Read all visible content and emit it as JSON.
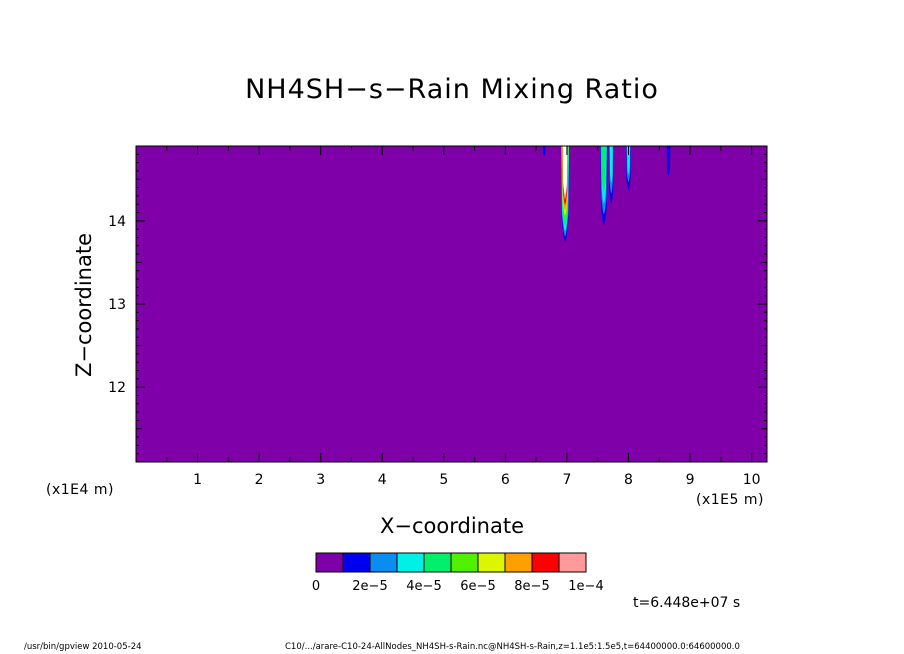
{
  "chart_data": {
    "type": "heatmap",
    "title": "NH4SH−s−Rain Mixing Ratio",
    "xlabel": "X−coordinate",
    "ylabel": "Z−coordinate",
    "x_unit": "(x1E5 m)",
    "y_unit": "(x1E4 m)",
    "xlim": [
      0.0,
      10.25
    ],
    "ylim": [
      11.1,
      14.9
    ],
    "x_ticks": [
      "1",
      "2",
      "3",
      "4",
      "5",
      "6",
      "7",
      "8",
      "9",
      "10"
    ],
    "y_ticks": [
      "12",
      "13",
      "14"
    ],
    "background_value": 0,
    "background_color": "#7f00a8",
    "features": [
      {
        "x_center": 6.97,
        "half_width": 0.07,
        "z_bottom": 13.75,
        "max_level": 10
      },
      {
        "x_center": 7.6,
        "half_width": 0.06,
        "z_bottom": 13.95,
        "max_level": 4
      },
      {
        "x_center": 7.72,
        "half_width": 0.04,
        "z_bottom": 14.2,
        "max_level": 3
      },
      {
        "x_center": 8.0,
        "half_width": 0.04,
        "z_bottom": 14.37,
        "max_level": 3
      },
      {
        "x_center": 8.65,
        "half_width": 0.03,
        "z_bottom": 14.55,
        "max_level": 1
      },
      {
        "x_center": 6.63,
        "half_width": 0.02,
        "z_bottom": 14.78,
        "max_level": 1
      }
    ],
    "colorbar": {
      "colors": [
        "#7f00a8",
        "#0000ee",
        "#0a8cf0",
        "#00f0e6",
        "#00f06e",
        "#50f000",
        "#dcf500",
        "#ffa000",
        "#ff0000",
        "#ff9a9a"
      ],
      "labels": [
        "0",
        "2e−5",
        "4e−5",
        "6e−5",
        "8e−5",
        "1e−4"
      ],
      "range": [
        0,
        0.0001
      ],
      "above_max_color": "#ffffff"
    },
    "time_label": "t=6.448e+07 s"
  },
  "footer": {
    "left": "/usr/bin/gpview   2010-05-24",
    "right": "C10/.../arare-C10-24-AllNodes_NH4SH-s-Rain.nc@NH4SH-s-Rain,z=1.1e5:1.5e5,t=64400000.0:64600000.0"
  }
}
